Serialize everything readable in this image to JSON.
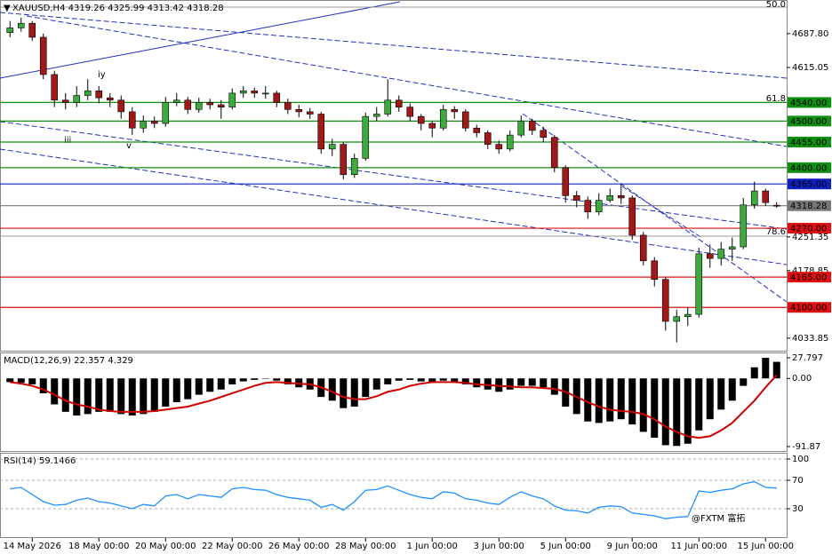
{
  "chart_data": [
    {
      "type": "candlestick",
      "title": "XAUUSD,H4 4319.26 4325.99 4313.42 4318.28",
      "x": [
        null,
        null,
        "14 May 2026",
        null,
        null,
        null,
        null,
        null,
        "18 May 00:00",
        null,
        null,
        null,
        null,
        null,
        "20 May 00:00",
        null,
        null,
        null,
        null,
        null,
        "22 May 00:00",
        null,
        null,
        null,
        null,
        null,
        "26 May 00:00",
        null,
        null,
        null,
        null,
        null,
        "28 May 00:00",
        null,
        null,
        null,
        null,
        null,
        "1 Jun 00:00",
        null,
        null,
        null,
        null,
        null,
        "3 Jun 00:00",
        null,
        null,
        null,
        null,
        null,
        "5 Jun 00:00",
        null,
        null,
        null,
        null,
        null,
        "9 Jun 00:00",
        null,
        null,
        null,
        null,
        null,
        "11 Jun 00:00",
        null,
        null,
        null,
        null,
        null,
        "15 Jun 00:00",
        null
      ],
      "open": [
        4690,
        4700,
        4710,
        4680,
        4600,
        4545,
        4540,
        4555,
        4565,
        4550,
        4545,
        4520,
        4485,
        4500,
        4495,
        4540,
        4545,
        4525,
        4540,
        4535,
        4530,
        4560,
        4565,
        4560,
        4560,
        4540,
        4525,
        4520,
        4515,
        4440,
        4450,
        4385,
        4420,
        4510,
        4515,
        4545,
        4530,
        4510,
        4495,
        4485,
        4525,
        4520,
        4485,
        4475,
        4450,
        4440,
        4470,
        4500,
        4480,
        4465,
        4400,
        4340,
        4330,
        4305,
        4330,
        4340,
        4335,
        4255,
        4200,
        4160,
        4070,
        4080,
        4085,
        4215,
        4205,
        4225,
        4230,
        4320,
        4350,
        4319.26
      ],
      "high": [
        4715,
        4722,
        4715,
        4688,
        4608,
        4560,
        4575,
        4590,
        4575,
        4560,
        4555,
        4530,
        4512,
        4510,
        4552,
        4560,
        4552,
        4550,
        4548,
        4545,
        4570,
        4575,
        4572,
        4575,
        4565,
        4548,
        4535,
        4528,
        4520,
        4462,
        4455,
        4430,
        4518,
        4530,
        4590,
        4555,
        4538,
        4515,
        4500,
        4535,
        4532,
        4525,
        4492,
        4480,
        4458,
        4480,
        4512,
        4505,
        4488,
        4470,
        4405,
        4350,
        4338,
        4345,
        4355,
        4365,
        4340,
        4262,
        4208,
        4165,
        4095,
        4100,
        4228,
        4235,
        4240,
        4250,
        4335,
        4370,
        4355,
        4325.99
      ],
      "low": [
        4680,
        4692,
        4672,
        4590,
        4530,
        4525,
        4530,
        4545,
        4538,
        4530,
        4505,
        4470,
        4475,
        4485,
        4488,
        4532,
        4515,
        4518,
        4525,
        4505,
        4525,
        4550,
        4550,
        4548,
        4530,
        4515,
        4508,
        4505,
        4430,
        4425,
        4375,
        4378,
        4415,
        4500,
        4510,
        4520,
        4500,
        4480,
        4465,
        4480,
        4505,
        4478,
        4465,
        4440,
        4430,
        4435,
        4465,
        4470,
        4455,
        4390,
        4325,
        4315,
        4290,
        4298,
        4325,
        4322,
        4245,
        4190,
        4145,
        4050,
        4025,
        4060,
        4078,
        4185,
        4190,
        4200,
        4225,
        4312,
        4318,
        4313.42
      ],
      "close": [
        4700,
        4710,
        4680,
        4600,
        4545,
        4540,
        4555,
        4565,
        4550,
        4545,
        4520,
        4485,
        4500,
        4495,
        4540,
        4545,
        4525,
        4540,
        4535,
        4530,
        4560,
        4565,
        4560,
        4560,
        4540,
        4525,
        4520,
        4515,
        4440,
        4450,
        4385,
        4420,
        4510,
        4515,
        4545,
        4530,
        4510,
        4495,
        4485,
        4525,
        4520,
        4485,
        4475,
        4450,
        4440,
        4470,
        4500,
        4480,
        4465,
        4400,
        4340,
        4330,
        4305,
        4330,
        4340,
        4335,
        4255,
        4200,
        4160,
        4070,
        4080,
        4085,
        4215,
        4205,
        4225,
        4230,
        4320,
        4350,
        4325,
        4318.28
      ],
      "up_color": "#3daa3d",
      "down_color": "#a01818",
      "wick_color": "#000000",
      "ylim": [
        4007,
        4760
      ],
      "yticks": [
        {
          "value": 4687.8,
          "label": "4687.80"
        },
        4615.05,
        4251.35,
        4178.85,
        4033.85
      ],
      "levels": [
        {
          "value": 4540,
          "label": "4540.00",
          "color": "#109010"
        },
        {
          "value": 4500,
          "label": "4500.00",
          "color": "#109010"
        },
        {
          "value": 4455,
          "label": "4455.00",
          "color": "#109010"
        },
        {
          "value": 4400,
          "label": "4400.00",
          "color": "#109010"
        },
        {
          "value": 4365,
          "label": "4365.00",
          "color": "#1020c0"
        },
        {
          "value": 4318.28,
          "label": "4318.28",
          "color": "#777777"
        },
        {
          "value": 4270,
          "label": "4270.00",
          "color": "#e01010"
        },
        {
          "value": 4165,
          "label": "4165.00",
          "color": "#e01010"
        },
        {
          "value": 4100,
          "label": "4100.00",
          "color": "#e01010"
        }
      ],
      "annotations": [
        "50.0",
        "61.8",
        "78.6",
        "iy",
        "iii",
        "v"
      ],
      "watermark": "@FXTM 富拓"
    },
    {
      "type": "macd",
      "title": "MACD(12,26,9) 22.357 4.329",
      "series": [
        {
          "color": "#000000",
          "values": [
            -5,
            -6,
            -8,
            -20,
            -35,
            -45,
            -50,
            -48,
            -45,
            -45,
            -48,
            -50,
            -48,
            -45,
            -38,
            -32,
            -28,
            -22,
            -18,
            -15,
            -8,
            -4,
            -2,
            0,
            -3,
            -8,
            -12,
            -15,
            -25,
            -30,
            -40,
            -38,
            -25,
            -15,
            -8,
            -3,
            -2,
            -4,
            -6,
            -3,
            -4,
            -8,
            -12,
            -15,
            -18,
            -15,
            -10,
            -10,
            -12,
            -22,
            -38,
            -48,
            -58,
            -60,
            -58,
            -55,
            -62,
            -72,
            -80,
            -90,
            -91,
            -88,
            -70,
            -55,
            -42,
            -30,
            -10,
            15,
            27.797,
            22.357
          ]
        },
        {
          "color": "#d00000",
          "values": [
            -5,
            -7,
            -10,
            -15,
            -22,
            -30,
            -35,
            -38,
            -42,
            -44,
            -45,
            -45,
            -45,
            -44,
            -42,
            -40,
            -38,
            -34,
            -30,
            -25,
            -20,
            -15,
            -10,
            -6,
            -5,
            -6,
            -7,
            -8,
            -12,
            -18,
            -25,
            -28,
            -28,
            -24,
            -18,
            -15,
            -10,
            -7,
            -5,
            -5,
            -5,
            -6,
            -8,
            -9,
            -10,
            -11,
            -12,
            -12,
            -13,
            -14,
            -18,
            -25,
            -32,
            -38,
            -42,
            -44,
            -45,
            -48,
            -55,
            -65,
            -72,
            -78,
            -80,
            -78,
            -70,
            -60,
            -45,
            -30,
            -12,
            4.329
          ]
        }
      ],
      "ylim": [
        -91.87,
        27.797
      ],
      "yticks": [
        27.797,
        {
          "value": 0,
          "label": "0.00"
        },
        -91.87
      ]
    },
    {
      "type": "line",
      "title": "RSI(14) 59.1466",
      "series": [
        {
          "color": "#1e90ff",
          "values": [
            58,
            60,
            50,
            40,
            35,
            36,
            42,
            45,
            40,
            38,
            34,
            30,
            36,
            34,
            48,
            50,
            44,
            50,
            48,
            46,
            58,
            60,
            57,
            56,
            50,
            46,
            44,
            42,
            32,
            36,
            28,
            40,
            56,
            57,
            62,
            56,
            50,
            46,
            44,
            54,
            52,
            44,
            42,
            38,
            36,
            46,
            54,
            48,
            44,
            34,
            28,
            27,
            24,
            32,
            34,
            33,
            24,
            22,
            20,
            16,
            18,
            19,
            55,
            53,
            56,
            58,
            65,
            68,
            60,
            59.1466
          ]
        }
      ],
      "ylim": [
        0,
        100
      ],
      "yticks": [
        100,
        70,
        30
      ]
    }
  ]
}
